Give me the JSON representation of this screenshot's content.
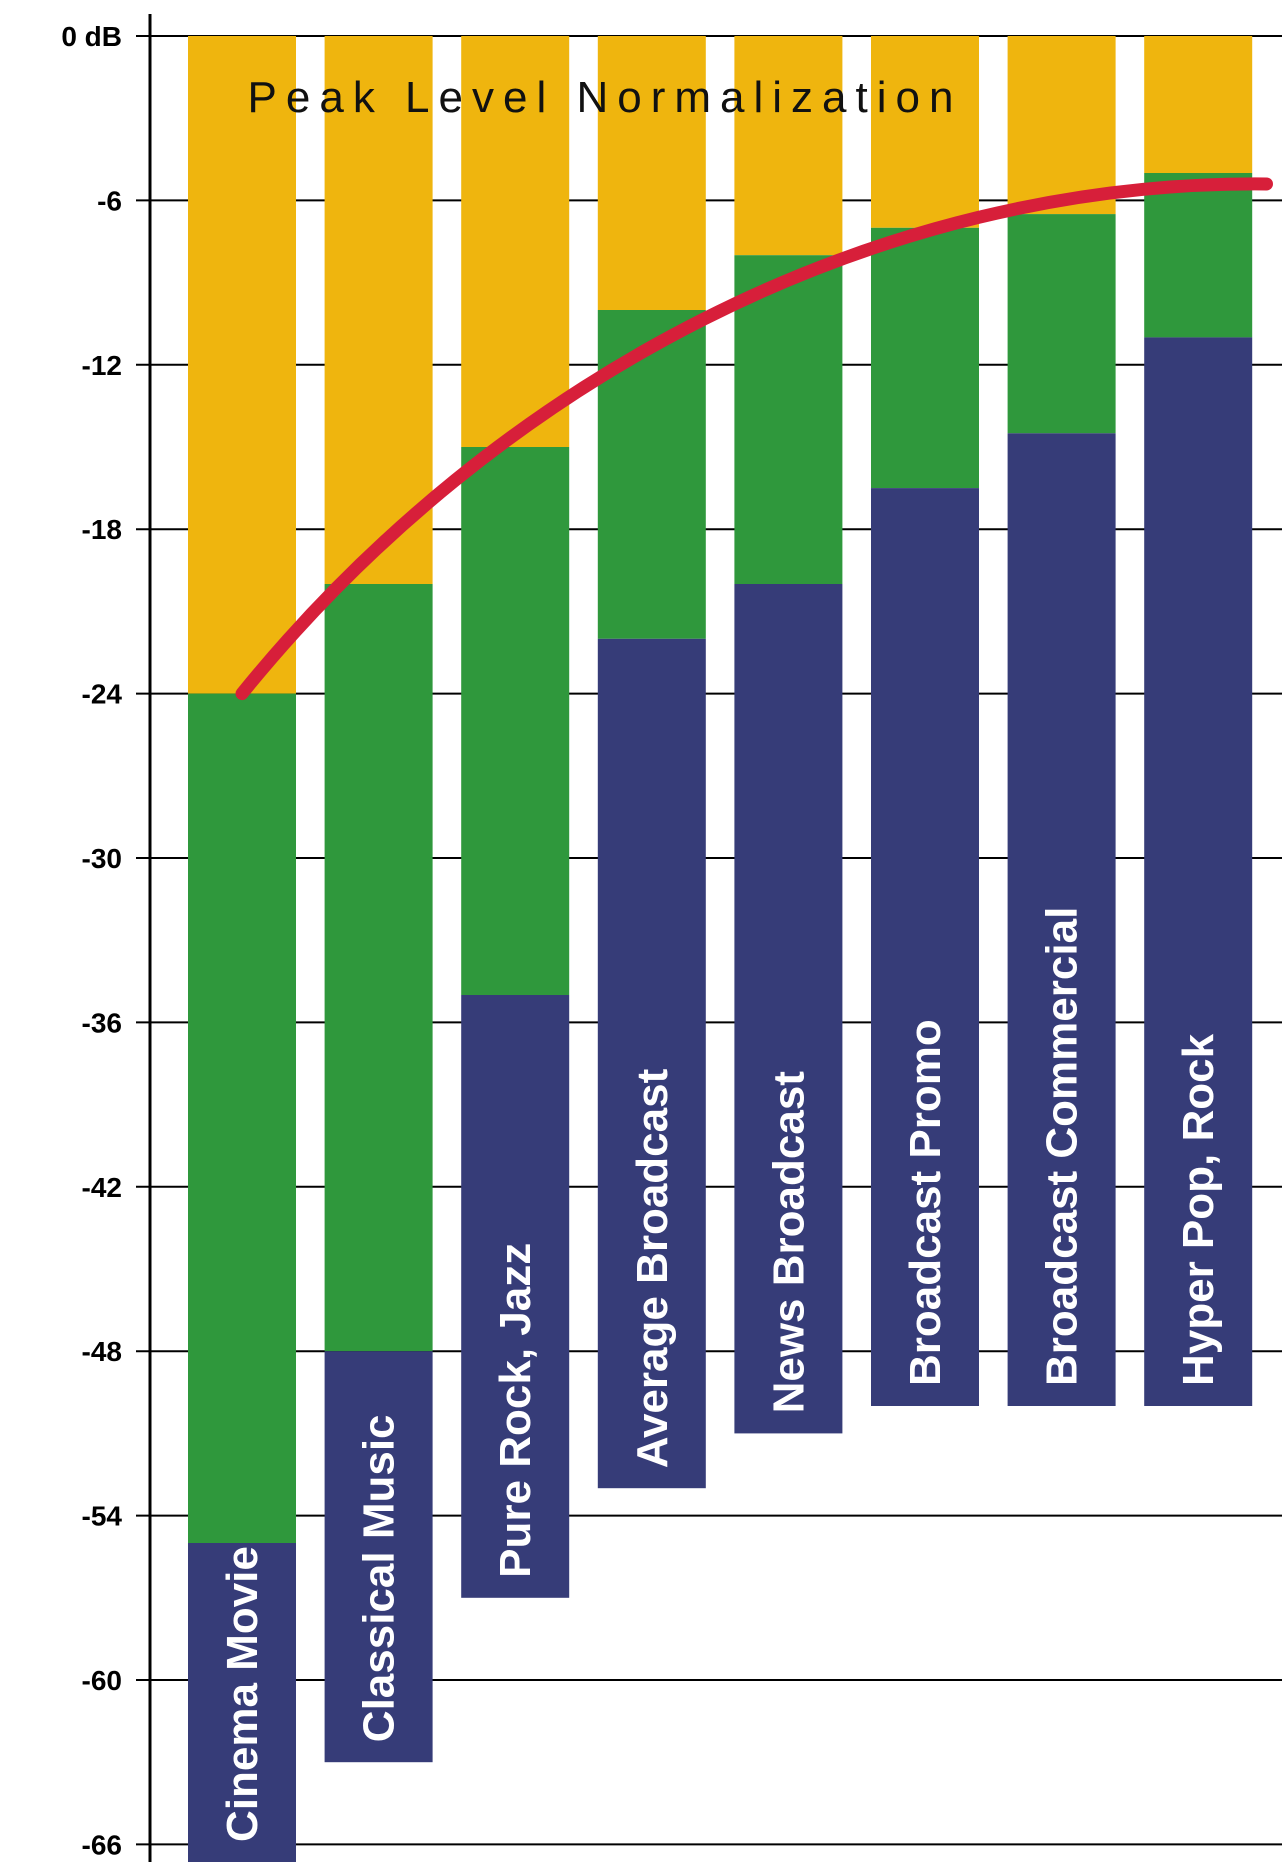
{
  "chart_data": {
    "type": "bar",
    "title": "Peak Level Normalization",
    "ylim": [
      -66,
      0
    ],
    "yticks": [
      0,
      -6,
      -12,
      -18,
      -24,
      -30,
      -36,
      -42,
      -48,
      -54,
      -60,
      -66
    ],
    "ytick_labels": [
      "0 dB",
      "-6",
      "-12",
      "-18",
      "-24",
      "-30",
      "-36",
      "-42",
      "-48",
      "-54",
      "-60",
      "-66"
    ],
    "grid": true,
    "categories": [
      "Cinema Movie",
      "Classical Music",
      "Pure Rock, Jazz",
      "Average Broadcast",
      "News Broadcast",
      "Broadcast Promo",
      "Broadcast  Commercial",
      "Hyper Pop, Rock"
    ],
    "bars": [
      {
        "label": "Cinema Movie",
        "headroom_top": 0,
        "green_top": -24,
        "blue_top": -55,
        "bottom": -67.5
      },
      {
        "label": "Classical Music",
        "headroom_top": 0,
        "green_top": -20,
        "blue_top": -48,
        "bottom": -63
      },
      {
        "label": "Pure Rock, Jazz",
        "headroom_top": 0,
        "green_top": -15,
        "blue_top": -35,
        "bottom": -57
      },
      {
        "label": "Average Broadcast",
        "headroom_top": 0,
        "green_top": -10,
        "blue_top": -22,
        "bottom": -53
      },
      {
        "label": "News Broadcast",
        "headroom_top": 0,
        "green_top": -8,
        "blue_top": -20,
        "bottom": -51
      },
      {
        "label": "Broadcast Promo",
        "headroom_top": 0,
        "green_top": -7,
        "blue_top": -16.5,
        "bottom": -50
      },
      {
        "label": "Broadcast  Commercial",
        "headroom_top": 0,
        "green_top": -6.5,
        "blue_top": -14.5,
        "bottom": -50
      },
      {
        "label": "Hyper Pop, Rock",
        "headroom_top": 0,
        "green_top": -5,
        "blue_top": -11,
        "bottom": -50
      }
    ],
    "curve": {
      "name": "",
      "color": "#d71f3a",
      "x_start": 0,
      "y_start": -24,
      "x_end": 7.5,
      "y_end": -5.4
    },
    "colors": {
      "headroom": "#efb50e",
      "green": "#2f983c",
      "blue": "#363c78",
      "curve": "#d71f3a",
      "grid": "#000000"
    }
  }
}
